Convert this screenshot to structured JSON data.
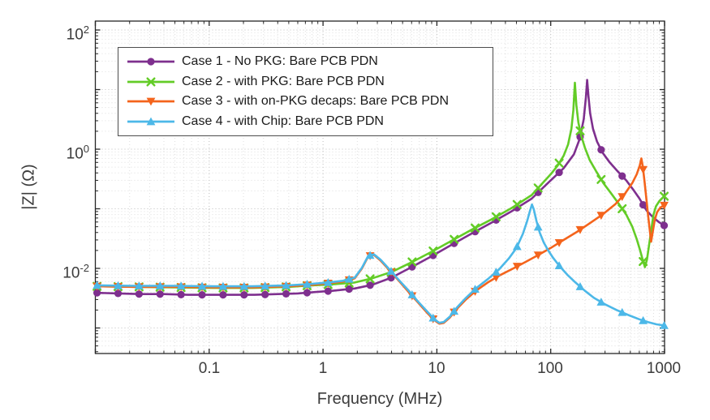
{
  "chart_data": {
    "type": "line",
    "title": "",
    "xlabel": "Frequency (MHz)",
    "ylabel": "|Z| (Ω)",
    "x_scale": "log",
    "y_scale": "log",
    "xlim_mhz": [
      0.01,
      1000
    ],
    "ylim_ohm": [
      0.00037,
      140
    ],
    "grid": "log major+minor dotted",
    "legend_position": "upper-left-inside",
    "x_ticks": [
      {
        "label": "0.1",
        "value": 0.1
      },
      {
        "label": "1",
        "value": 1
      },
      {
        "label": "10",
        "value": 10
      },
      {
        "label": "100",
        "value": 100
      },
      {
        "label": "1000",
        "value": 1000
      }
    ],
    "y_ticks": [
      {
        "base": "10",
        "exp": "2",
        "value": 100
      },
      {
        "base": "10",
        "exp": "0",
        "value": 1
      },
      {
        "base": "10",
        "exp": "-2",
        "value": 0.01
      }
    ],
    "series": [
      {
        "name": "Case 1 - No PKG: Bare PCB PDN",
        "color": "#7E2F8E",
        "marker": "circle",
        "points": [
          [
            0.01,
            0.0039
          ],
          [
            0.016,
            0.0038
          ],
          [
            0.025,
            0.0037
          ],
          [
            0.04,
            0.0037
          ],
          [
            0.065,
            0.0036
          ],
          [
            0.1,
            0.0036
          ],
          [
            0.16,
            0.0036
          ],
          [
            0.25,
            0.0036
          ],
          [
            0.4,
            0.0037
          ],
          [
            0.6,
            0.0038
          ],
          [
            0.85,
            0.004
          ],
          [
            1.2,
            0.0042
          ],
          [
            1.9,
            0.0046
          ],
          [
            2.7,
            0.0053
          ],
          [
            4,
            0.007
          ],
          [
            6,
            0.0105
          ],
          [
            9,
            0.016
          ],
          [
            13,
            0.024
          ],
          [
            20,
            0.038
          ],
          [
            30,
            0.058
          ],
          [
            45,
            0.09
          ],
          [
            68,
            0.148
          ],
          [
            100,
            0.3
          ],
          [
            130,
            0.48
          ],
          [
            160,
            0.82
          ],
          [
            180,
            1.5
          ],
          [
            195,
            3.2
          ],
          [
            204,
            7.5
          ],
          [
            209,
            14.5
          ],
          [
            214,
            8.0
          ],
          [
            222,
            4.0
          ],
          [
            235,
            2.2
          ],
          [
            255,
            1.35
          ],
          [
            285,
            0.88
          ],
          [
            330,
            0.6
          ],
          [
            390,
            0.42
          ],
          [
            460,
            0.3
          ],
          [
            530,
            0.21
          ],
          [
            600,
            0.15
          ],
          [
            660,
            0.11
          ],
          [
            700,
            0.092
          ],
          [
            760,
            0.078
          ],
          [
            820,
            0.068
          ],
          [
            900,
            0.059
          ],
          [
            1000,
            0.052
          ]
        ]
      },
      {
        "name": "Case 2 - with PKG: Bare PCB PDN",
        "color": "#63CC27",
        "marker": "x",
        "points": [
          [
            0.01,
            0.005
          ],
          [
            0.022,
            0.0049
          ],
          [
            0.05,
            0.0048
          ],
          [
            0.11,
            0.0047
          ],
          [
            0.24,
            0.0047
          ],
          [
            0.5,
            0.0049
          ],
          [
            0.8,
            0.0052
          ],
          [
            1.2,
            0.0054
          ],
          [
            1.9,
            0.0058
          ],
          [
            2.7,
            0.0068
          ],
          [
            4,
            0.0087
          ],
          [
            6,
            0.0127
          ],
          [
            9,
            0.019
          ],
          [
            13,
            0.028
          ],
          [
            20,
            0.044
          ],
          [
            30,
            0.066
          ],
          [
            45,
            0.102
          ],
          [
            68,
            0.17
          ],
          [
            100,
            0.38
          ],
          [
            115,
            0.53
          ],
          [
            130,
            0.78
          ],
          [
            142,
            1.2
          ],
          [
            152,
            2.2
          ],
          [
            158,
            4.5
          ],
          [
            163,
            13.0
          ],
          [
            168,
            5.5
          ],
          [
            175,
            2.8
          ],
          [
            185,
            1.7
          ],
          [
            200,
            1.05
          ],
          [
            220,
            0.66
          ],
          [
            250,
            0.43
          ],
          [
            290,
            0.27
          ],
          [
            340,
            0.18
          ],
          [
            400,
            0.118
          ],
          [
            460,
            0.08
          ],
          [
            520,
            0.05
          ],
          [
            570,
            0.031
          ],
          [
            610,
            0.02
          ],
          [
            645,
            0.0135
          ],
          [
            672,
            0.0105
          ],
          [
            700,
            0.014
          ],
          [
            730,
            0.024
          ],
          [
            765,
            0.045
          ],
          [
            800,
            0.08
          ],
          [
            840,
            0.11
          ],
          [
            900,
            0.135
          ],
          [
            1000,
            0.165
          ]
        ]
      },
      {
        "name": "Case 3 - with on-PKG decaps: Bare PCB PDN",
        "color": "#F4641C",
        "marker": "triangle-down",
        "points": [
          [
            0.01,
            0.005
          ],
          [
            0.022,
            0.0049
          ],
          [
            0.05,
            0.0049
          ],
          [
            0.11,
            0.0048
          ],
          [
            0.24,
            0.0048
          ],
          [
            0.5,
            0.005
          ],
          [
            0.8,
            0.0053
          ],
          [
            1.1,
            0.0056
          ],
          [
            1.5,
            0.006
          ],
          [
            1.9,
            0.0068
          ],
          [
            2.2,
            0.01
          ],
          [
            2.5,
            0.016
          ],
          [
            2.8,
            0.0168
          ],
          [
            3.2,
            0.0135
          ],
          [
            3.8,
            0.0095
          ],
          [
            4.6,
            0.0063
          ],
          [
            5.6,
            0.0041
          ],
          [
            6.8,
            0.0027
          ],
          [
            8.2,
            0.0018
          ],
          [
            9.5,
            0.00135
          ],
          [
            10.5,
            0.00118
          ],
          [
            11.5,
            0.00122
          ],
          [
            13,
            0.0015
          ],
          [
            15,
            0.0021
          ],
          [
            18,
            0.003
          ],
          [
            22,
            0.0042
          ],
          [
            28,
            0.0058
          ],
          [
            36,
            0.0077
          ],
          [
            47,
            0.01
          ],
          [
            60,
            0.0128
          ],
          [
            78,
            0.0168
          ],
          [
            100,
            0.022
          ],
          [
            130,
            0.03
          ],
          [
            170,
            0.041
          ],
          [
            220,
            0.057
          ],
          [
            290,
            0.082
          ],
          [
            370,
            0.12
          ],
          [
            450,
            0.18
          ],
          [
            520,
            0.27
          ],
          [
            570,
            0.38
          ],
          [
            605,
            0.53
          ],
          [
            625,
            0.7
          ],
          [
            645,
            0.5
          ],
          [
            668,
            0.28
          ],
          [
            690,
            0.155
          ],
          [
            715,
            0.08
          ],
          [
            740,
            0.045
          ],
          [
            762,
            0.028
          ],
          [
            790,
            0.042
          ],
          [
            820,
            0.065
          ],
          [
            860,
            0.088
          ],
          [
            920,
            0.105
          ],
          [
            1000,
            0.115
          ]
        ]
      },
      {
        "name": "Case 4 - with Chip: Bare PCB PDN",
        "color": "#4CB8E8",
        "marker": "triangle-up",
        "points": [
          [
            0.01,
            0.0052
          ],
          [
            0.022,
            0.0051
          ],
          [
            0.05,
            0.0051
          ],
          [
            0.11,
            0.005
          ],
          [
            0.24,
            0.005
          ],
          [
            0.5,
            0.0052
          ],
          [
            0.8,
            0.0055
          ],
          [
            1.1,
            0.0058
          ],
          [
            1.5,
            0.0062
          ],
          [
            1.9,
            0.007
          ],
          [
            2.2,
            0.0103
          ],
          [
            2.5,
            0.0163
          ],
          [
            2.8,
            0.0172
          ],
          [
            3.2,
            0.014
          ],
          [
            3.8,
            0.0098
          ],
          [
            4.6,
            0.0065
          ],
          [
            5.6,
            0.0043
          ],
          [
            6.8,
            0.0028
          ],
          [
            8.2,
            0.0019
          ],
          [
            9.5,
            0.0014
          ],
          [
            10.5,
            0.00122
          ],
          [
            11.5,
            0.00126
          ],
          [
            13,
            0.00155
          ],
          [
            15,
            0.0022
          ],
          [
            18,
            0.0032
          ],
          [
            22,
            0.0046
          ],
          [
            28,
            0.0066
          ],
          [
            35,
            0.0095
          ],
          [
            43,
            0.0148
          ],
          [
            50,
            0.022
          ],
          [
            57,
            0.038
          ],
          [
            62,
            0.062
          ],
          [
            66,
            0.095
          ],
          [
            68.5,
            0.118
          ],
          [
            71,
            0.098
          ],
          [
            75,
            0.062
          ],
          [
            80,
            0.04
          ],
          [
            87,
            0.027
          ],
          [
            95,
            0.02
          ],
          [
            105,
            0.015
          ],
          [
            120,
            0.0108
          ],
          [
            140,
            0.0078
          ],
          [
            165,
            0.0058
          ],
          [
            200,
            0.0042
          ],
          [
            240,
            0.0032
          ],
          [
            300,
            0.0025
          ],
          [
            380,
            0.002
          ],
          [
            480,
            0.00165
          ],
          [
            600,
            0.0014
          ],
          [
            720,
            0.00125
          ],
          [
            850,
            0.00115
          ],
          [
            1000,
            0.0011
          ]
        ]
      }
    ]
  },
  "legend": {
    "items": [
      {
        "label": "Case 1 - No PKG: Bare PCB PDN",
        "color": "#7E2F8E",
        "marker": "circle"
      },
      {
        "label": "Case 2 - with PKG: Bare PCB PDN",
        "color": "#63CC27",
        "marker": "x"
      },
      {
        "label": "Case 3 - with on-PKG decaps: Bare PCB PDN",
        "color": "#F4641C",
        "marker": "triangle-down"
      },
      {
        "label": "Case 4 - with Chip: Bare PCB PDN",
        "color": "#4CB8E8",
        "marker": "triangle-up"
      }
    ]
  }
}
